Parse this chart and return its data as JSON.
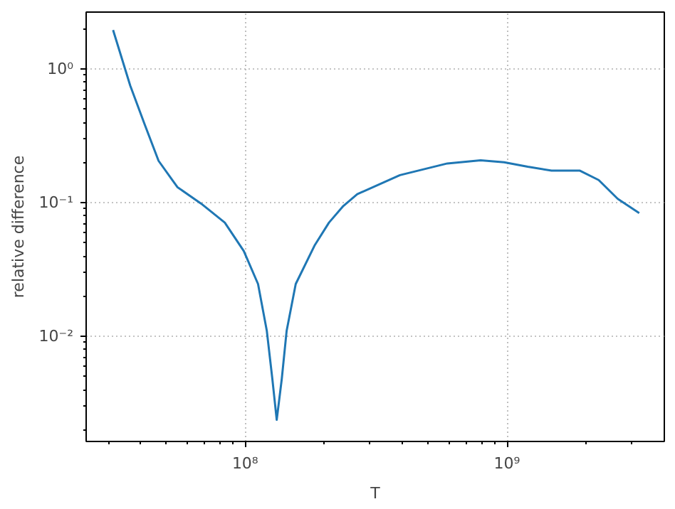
{
  "chart_data": {
    "type": "line",
    "xlabel": "T",
    "ylabel": "relative difference",
    "log": "xy",
    "grid": true,
    "marker": "none",
    "line_style": "solid",
    "xlim": [
      24700000.0,
      3990000000.0
    ],
    "ylim": [
      0.00164,
      2.67
    ],
    "xticks": [
      {
        "value": 100000000.0,
        "label": "10⁸"
      },
      {
        "value": 1000000000.0,
        "label": "10⁹"
      }
    ],
    "yticks": [
      {
        "value": 0.01,
        "label": "10⁻²"
      },
      {
        "value": 0.1,
        "label": "10⁻¹"
      },
      {
        "value": 1,
        "label": "10⁰"
      }
    ],
    "x": [
      31300000.0,
      36400000.0,
      41200000.0,
      46700000.0,
      55100000.0,
      67900000.0,
      83600000.0,
      98800000.0,
      112000000.0,
      121000000.0,
      127000000.0,
      132000000.0,
      138000000.0,
      144000000.0,
      156000000.0,
      184000000.0,
      209000000.0,
      237000000.0,
      268000000.0,
      390000000.0,
      592000000.0,
      793000000.0,
      975000000.0,
      1200000000.0,
      1480000000.0,
      1900000000.0,
      2240000000.0,
      2650000000.0,
      3200000000.0
    ],
    "series": [
      {
        "color": "#1f77b4",
        "values": [
          1.96,
          0.752,
          0.392,
          0.206,
          0.131,
          0.0986,
          0.0711,
          0.0436,
          0.0247,
          0.011,
          0.00482,
          0.00238,
          0.00482,
          0.011,
          0.0247,
          0.0478,
          0.0711,
          0.0946,
          0.116,
          0.161,
          0.197,
          0.208,
          0.201,
          0.186,
          0.174,
          0.174,
          0.148,
          0.107,
          0.0837
        ]
      }
    ]
  }
}
